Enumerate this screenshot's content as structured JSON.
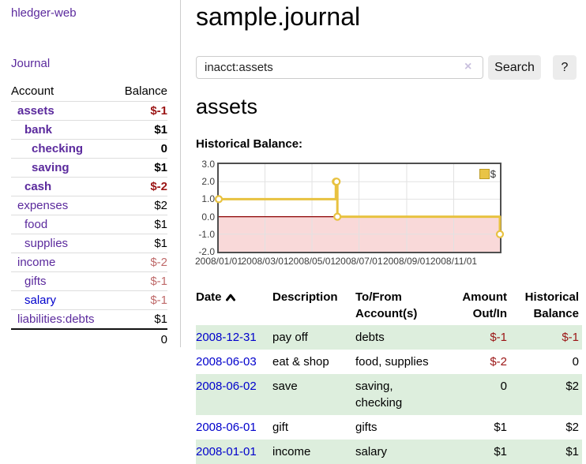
{
  "colors": {
    "link_purple": "#5b2a9d",
    "link_blue": "#0000cc",
    "negative_strong": "#9b1515",
    "negative_muted": "#bf6a6a",
    "row_green": "#ddeedd",
    "chart_line": "#e8c240",
    "chart_negative_region": "#f9d9d9",
    "chart_zero_line": "#8b0000"
  },
  "sidebar": {
    "app_title": "hledger-web",
    "journal_link": "Journal",
    "account_header": "Account",
    "balance_header": "Balance",
    "accounts": [
      {
        "name": "assets",
        "balance": "$-1"
      },
      {
        "name": "bank",
        "balance": "$1"
      },
      {
        "name": "checking",
        "balance": "0"
      },
      {
        "name": "saving",
        "balance": "$1"
      },
      {
        "name": "cash",
        "balance": "$-2"
      },
      {
        "name": "expenses",
        "balance": "$2"
      },
      {
        "name": "food",
        "balance": "$1"
      },
      {
        "name": "supplies",
        "balance": "$1"
      },
      {
        "name": "income",
        "balance": "$-2"
      },
      {
        "name": "gifts",
        "balance": "$-1"
      },
      {
        "name": "salary",
        "balance": "$-1"
      },
      {
        "name": "liabilities:debts",
        "balance": "$1"
      }
    ],
    "total": "0"
  },
  "main": {
    "title": "sample.journal",
    "search": {
      "value": "inacct:assets",
      "clear_label": "×",
      "search_button": "Search",
      "help_button": "?"
    },
    "account_title": "assets",
    "chart_label": "Historical Balance:",
    "register": {
      "headers": {
        "date": "Date",
        "description": "Description",
        "tofrom": "To/From Account(s)",
        "amount": "Amount Out/In",
        "balance": "Historical Balance"
      },
      "rows": [
        {
          "date": "2008-12-31",
          "description": "pay off",
          "accounts": "debts",
          "amount": "$-1",
          "balance": "$-1"
        },
        {
          "date": "2008-06-03",
          "description": "eat & shop",
          "accounts": "food, supplies",
          "amount": "$-2",
          "balance": "0"
        },
        {
          "date": "2008-06-02",
          "description": "save",
          "accounts": "saving, checking",
          "amount": "0",
          "balance": "$2"
        },
        {
          "date": "2008-06-01",
          "description": "gift",
          "accounts": "gifts",
          "amount": "$1",
          "balance": "$2"
        },
        {
          "date": "2008-01-01",
          "description": "income",
          "accounts": "salary",
          "amount": "$1",
          "balance": "$1"
        }
      ]
    }
  },
  "chart_data": {
    "type": "line",
    "title": "Historical Balance",
    "step": true,
    "series": [
      {
        "name": "$",
        "points": [
          [
            "2008-01-01",
            1
          ],
          [
            "2008-06-01",
            2
          ],
          [
            "2008-06-02",
            2
          ],
          [
            "2008-06-03",
            0
          ],
          [
            "2008-12-31",
            -1
          ]
        ]
      }
    ],
    "x_range": [
      "2008-01-01",
      "2008-12-31"
    ],
    "ylim": [
      -2,
      3
    ],
    "yticks": [
      "3.0",
      "2.0",
      "1.0",
      "0.0",
      "-1.0",
      "-2.0"
    ],
    "xticks": [
      "2008/01/01",
      "2008/03/01",
      "2008/05/01",
      "2008/07/01",
      "2008/09/01",
      "2008/11/01"
    ],
    "legend_position": "top-right",
    "grid": true,
    "line_color": "#e8c240",
    "negative_region_color": "#f9d9d9",
    "zero_line_color": "#8b0000"
  }
}
